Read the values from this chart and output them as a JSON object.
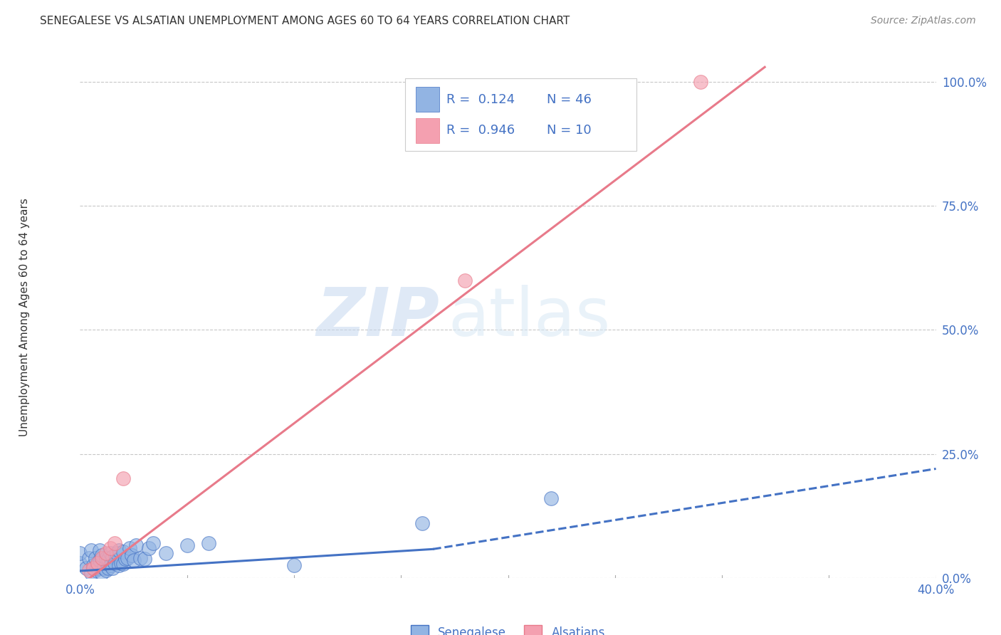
{
  "title": "SENEGALESE VS ALSATIAN UNEMPLOYMENT AMONG AGES 60 TO 64 YEARS CORRELATION CHART",
  "source": "Source: ZipAtlas.com",
  "ylabel": "Unemployment Among Ages 60 to 64 years",
  "xlim": [
    0.0,
    0.4
  ],
  "ylim": [
    -0.02,
    1.05
  ],
  "plot_ylim": [
    0.0,
    1.05
  ],
  "xticks": [
    0.0,
    0.05,
    0.1,
    0.15,
    0.2,
    0.25,
    0.3,
    0.35,
    0.4
  ],
  "xticklabels": [
    "0.0%",
    "",
    "",
    "",
    "",
    "",
    "",
    "",
    "40.0%"
  ],
  "yticks_right": [
    0.0,
    0.25,
    0.5,
    0.75,
    1.0
  ],
  "yticklabels_right": [
    "0.0%",
    "25.0%",
    "50.0%",
    "75.0%",
    "100.0%"
  ],
  "color_senegalese": "#92b4e3",
  "color_alsatian": "#f4a0b0",
  "color_line_senegalese": "#4472c4",
  "color_line_alsatian": "#e87a8a",
  "color_blue_text": "#4472c4",
  "background_color": "#ffffff",
  "watermark_zip": "ZIP",
  "watermark_atlas": "atlas",
  "senegalese_x": [
    0.0,
    0.0,
    0.003,
    0.004,
    0.005,
    0.005,
    0.006,
    0.007,
    0.007,
    0.008,
    0.009,
    0.009,
    0.01,
    0.01,
    0.011,
    0.012,
    0.012,
    0.013,
    0.013,
    0.014,
    0.014,
    0.015,
    0.015,
    0.016,
    0.017,
    0.018,
    0.018,
    0.019,
    0.02,
    0.02,
    0.021,
    0.022,
    0.023,
    0.024,
    0.025,
    0.026,
    0.028,
    0.03,
    0.032,
    0.034,
    0.04,
    0.05,
    0.06,
    0.1,
    0.16,
    0.22
  ],
  "senegalese_y": [
    0.03,
    0.05,
    0.02,
    0.04,
    0.01,
    0.055,
    0.025,
    0.015,
    0.04,
    0.02,
    0.035,
    0.055,
    0.01,
    0.045,
    0.02,
    0.015,
    0.04,
    0.02,
    0.038,
    0.025,
    0.05,
    0.02,
    0.042,
    0.03,
    0.05,
    0.025,
    0.055,
    0.03,
    0.028,
    0.052,
    0.038,
    0.04,
    0.06,
    0.045,
    0.035,
    0.065,
    0.04,
    0.038,
    0.06,
    0.07,
    0.05,
    0.065,
    0.07,
    0.025,
    0.11,
    0.16
  ],
  "alsatian_x": [
    0.004,
    0.006,
    0.008,
    0.01,
    0.012,
    0.014,
    0.016,
    0.02,
    0.18,
    0.29
  ],
  "alsatian_y": [
    0.015,
    0.02,
    0.03,
    0.04,
    0.05,
    0.06,
    0.07,
    0.2,
    0.6,
    1.0
  ],
  "trend_sene_x1": 0.0,
  "trend_sene_y1": 0.014,
  "trend_sene_x2": 0.165,
  "trend_sene_y2": 0.058,
  "trend_sene_ext_x2": 0.4,
  "trend_sene_ext_y2": 0.22,
  "trend_alsa_x1": 0.0,
  "trend_alsa_y1": -0.015,
  "trend_alsa_x2": 0.32,
  "trend_alsa_y2": 1.03
}
